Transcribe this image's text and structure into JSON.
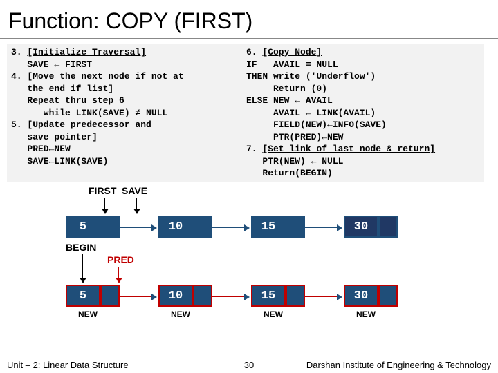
{
  "title": "Function: COPY (FIRST)",
  "code_left": "3. [Initialize Traversal]\n   SAVE ← FIRST\n4. [Move the next node if not at\n   the end if list]\n   Repeat thru step 6 \n      while LINK(SAVE) ≠ NULL\n5. [Update predecessor and \n   save pointer]\n   PRED←NEW\n   SAVE←LINK(SAVE)",
  "code_right": "6. [Copy Node]\nIF   AVAIL = NULL\nTHEN write ('Underflow')\n     Return (0)\nELSE NEW ← AVAIL\n     AVAIL ← LINK(AVAIL)\n     FIELD(NEW)←INFO(SAVE)\n     PTR(PRED)←NEW\n7. [Set link of last node & return]\n   PTR(NEW) ← NULL\n   Return(BEGIN)",
  "labels": {
    "first": "FIRST",
    "save": "SAVE",
    "begin": "BEGIN",
    "pred": "PRED",
    "new": "NEW"
  },
  "nodes_top": {
    "values": [
      "5",
      "10",
      "15",
      "30"
    ],
    "fill": "#1f4e79",
    "border": "#1f4e79",
    "text": "#ffffff",
    "last_fill": "#203864"
  },
  "nodes_bottom": {
    "values": [
      "5",
      "10",
      "15",
      "30"
    ],
    "fill": "#1f4e79",
    "border": "#c00000",
    "text": "#ffffff"
  },
  "arrow_color_top": "#1f4e79",
  "arrow_color_bottom": "#c00000",
  "footer": {
    "left": "Unit – 2: Linear Data Structure",
    "slide": "30",
    "right": "Darshan Institute of Engineering & Technology"
  }
}
